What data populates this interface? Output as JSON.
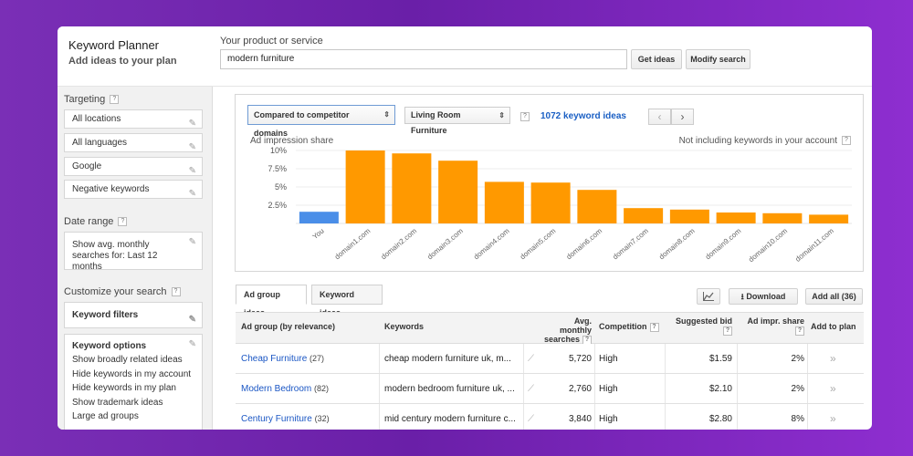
{
  "header": {
    "app_title": "Keyword Planner",
    "app_subtitle": "Add ideas to your plan",
    "product_label": "Your product or service",
    "product_value": "modern furniture",
    "get_ideas": "Get ideas",
    "modify_search": "Modify search"
  },
  "sidebar": {
    "targeting_title": "Targeting",
    "targeting_items": [
      "All locations",
      "All languages",
      "Google",
      "Negative keywords"
    ],
    "date_range_title": "Date range",
    "date_range_value": "Show avg. monthly searches for: Last 12 months",
    "customize_title": "Customize your search",
    "keyword_filters": "Keyword filters",
    "keyword_options_title": "Keyword options",
    "keyword_options": [
      "Show broadly related ideas",
      "Hide keywords in my account",
      "Hide keywords in my plan",
      "Show trademark ideas",
      "Large ad groups"
    ]
  },
  "chart_panel": {
    "compare_dropdown": "Compared to competitor domains",
    "category_dropdown": "Living Room Furniture",
    "keyword_count": "1072 keyword ideas",
    "note": "Not including keywords in your account"
  },
  "chart_data": {
    "type": "bar",
    "title": "Ad impression share",
    "categories": [
      "You",
      "domain1.com",
      "domain2.com",
      "domain3.com",
      "domain4.com",
      "domain5.com",
      "domain6.com",
      "domain7.com",
      "domain8.com",
      "domain9.com",
      "domain10.com",
      "domain11.com"
    ],
    "values": [
      1.6,
      10.0,
      9.6,
      8.6,
      5.7,
      5.6,
      4.6,
      2.1,
      1.9,
      1.5,
      1.4,
      1.2
    ],
    "yticks": [
      "10%",
      "7.5%",
      "5%",
      "2.5%"
    ],
    "ylim": [
      0,
      10
    ],
    "colors": {
      "you": "#4a8ee8",
      "competitor": "#ff9900"
    },
    "grid": true
  },
  "tabs": [
    "Ad group ideas",
    "Keyword ideas"
  ],
  "toolbar": {
    "chart_icon": "chart-icon",
    "download": "Download",
    "add_all": "Add all (36)"
  },
  "table": {
    "headers": {
      "ad_group": "Ad group (by relevance)",
      "keywords": "Keywords",
      "searches_1": "Avg. monthly",
      "searches_2": "searches",
      "competition": "Competition",
      "bid": "Suggested bid",
      "impr": "Ad impr. share",
      "add": "Add to plan"
    },
    "rows": [
      {
        "group": "Cheap Furniture",
        "count": "(27)",
        "keywords": "cheap modern furniture uk, m...",
        "searches": "5,720",
        "competition": "High",
        "bid": "$1.59",
        "impr": "2%"
      },
      {
        "group": "Modern Bedroom",
        "count": "(82)",
        "keywords": "modern bedroom furniture uk, ...",
        "searches": "2,760",
        "competition": "High",
        "bid": "$2.10",
        "impr": "2%"
      },
      {
        "group": "Century Furniture",
        "count": "(32)",
        "keywords": "mid century modern furniture c...",
        "searches": "3,840",
        "competition": "High",
        "bid": "$2.80",
        "impr": "8%"
      }
    ]
  }
}
